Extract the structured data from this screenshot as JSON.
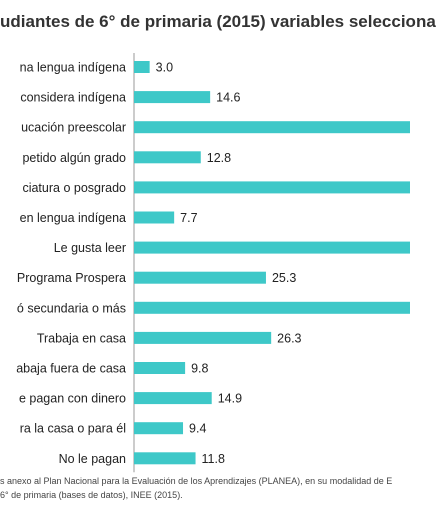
{
  "chart_data": {
    "type": "bar",
    "orientation": "horizontal",
    "title": "udiantes de 6° de primaria (2015) variables selecciona",
    "categories": [
      "na lengua indígena",
      "considera indígena",
      "ucación preescolar",
      "petido algún grado",
      "ciatura o posgrado",
      "en lengua indígena",
      "Le gusta leer",
      "Programa Prospera",
      "ó secundaria o más",
      "Trabaja en casa",
      "abaja fuera de casa",
      "e pagan con dinero",
      "ra la casa o para él",
      "No le pagan"
    ],
    "values": [
      3.0,
      14.6,
      null,
      12.8,
      null,
      7.7,
      null,
      25.3,
      null,
      26.3,
      9.8,
      14.9,
      9.4,
      11.8
    ],
    "value_labels": [
      "3.0",
      "14.6",
      "",
      "12.8",
      "",
      "7.7",
      "",
      "25.3",
      "",
      "26.3",
      "9.8",
      "14.9",
      "9.4",
      "11.8"
    ],
    "bar_color": "#3ec8c8",
    "xlim": [
      0,
      51
    ]
  },
  "source_note": {
    "line1": "s anexo al Plan Nacional para la Evaluación de los Aprendizajes (PLANEA), en su modalidad de E",
    "line2": "6° de primaria (bases de datos), INEE (2015)."
  }
}
